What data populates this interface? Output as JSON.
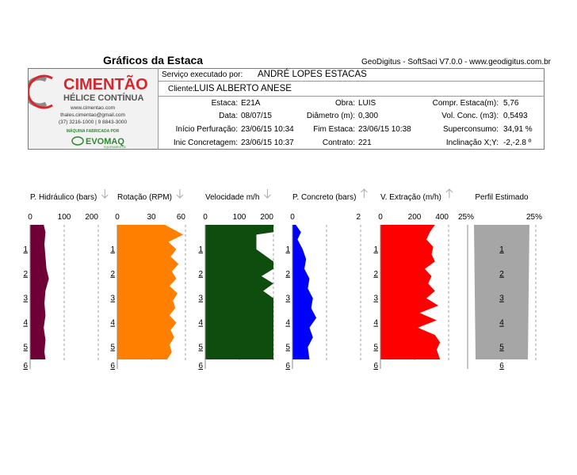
{
  "title": "Gráficos da Estaca",
  "software": "GeoDigitus - SoftSaci V7.0.0 - www.geodigitus.com.br",
  "logo": {
    "brand": "CIMENTÃO",
    "subtitle": "HÉLICE CONTÍNUA",
    "site": "www.cimentao.com",
    "email": "thales.cimentao@gmail.com",
    "phones": "(37) 3216-1000 | 9 8843-3000",
    "manufacturer_label": "MÁQUINA FABRICADA POR",
    "manufacturer": "EVOMAQ",
    "manufacturer_sub": "EQUIPAMENTOS"
  },
  "service": {
    "label": "Serviço executado por:",
    "value": "ANDRÉ LOPES ESTACAS"
  },
  "client": {
    "label": "Cliente:",
    "value": "LUIS ALBERTO ANESE"
  },
  "fields": {
    "estaca": {
      "label": "Estaca:",
      "value": "E21A"
    },
    "data": {
      "label": "Data:",
      "value": "08/07/15"
    },
    "inicio_perf": {
      "label": "Início Perfuração:",
      "value": "23/06/15 10:34"
    },
    "inic_conc": {
      "label": "Inic Concretagem:",
      "value": "23/06/15 10:37"
    },
    "obra": {
      "label": "Obra:",
      "value": "LUIS"
    },
    "diametro": {
      "label": "Diâmetro (m):",
      "value": "0,300"
    },
    "fim_estaca": {
      "label": "Fim Estaca:",
      "value": "23/06/15 10:38"
    },
    "contrato": {
      "label": "Contrato:",
      "value": "221"
    },
    "compr": {
      "label": "Compr. Estaca(m):",
      "value": "5,76"
    },
    "vol_conc": {
      "label": "Vol. Conc. (m3):",
      "value": "0,5493"
    },
    "superconsumo": {
      "label": "Superconsumo:",
      "value": "34,91 %"
    },
    "inclinacao": {
      "label": "Inclinação X;Y:",
      "value": "-2,-2.8 º"
    }
  },
  "chart_data": [
    {
      "type": "area",
      "title": "P. Hidráulico (bars)",
      "arrow": "down",
      "color": "#6e0035",
      "xlim": [
        0,
        200
      ],
      "xticks": [
        "0",
        "100",
        "200"
      ],
      "depth_ticks": [
        "1",
        "2",
        "3",
        "4",
        "5",
        "6"
      ],
      "depth": [
        0,
        0.3,
        0.8,
        1.3,
        1.8,
        2.2,
        2.7,
        3.2,
        3.7,
        4.2,
        4.7,
        5.2,
        5.5
      ],
      "values": [
        40,
        45,
        42,
        45,
        48,
        55,
        45,
        42,
        45,
        40,
        45,
        42,
        45
      ]
    },
    {
      "type": "area",
      "title": "Rotação (RPM)",
      "arrow": "down",
      "color": "#ff8000",
      "xlim": [
        0,
        60
      ],
      "xticks": [
        "0",
        "30",
        "60"
      ],
      "depth_ticks": [
        "1",
        "2",
        "3",
        "4",
        "5",
        "6"
      ],
      "depth": [
        0,
        0.2,
        0.4,
        0.7,
        1.0,
        1.3,
        1.6,
        1.9,
        2.2,
        2.5,
        2.8,
        3.1,
        3.4,
        3.7,
        4.0,
        4.3,
        4.6,
        4.9,
        5.2,
        5.5
      ],
      "values": [
        42,
        50,
        58,
        45,
        52,
        47,
        54,
        48,
        52,
        46,
        53,
        49,
        51,
        46,
        52,
        47,
        50,
        46,
        48,
        44
      ]
    },
    {
      "type": "area",
      "title": "Velocidade m/h",
      "arrow": "down",
      "color": "#0f4d0f",
      "xlim": [
        0,
        200
      ],
      "xticks": [
        "0",
        "100",
        "200"
      ],
      "depth_ticks": [
        "1",
        "2",
        "3",
        "4",
        "5",
        "6"
      ],
      "depth": [
        0,
        0.3,
        0.4,
        1.0,
        1.5,
        1.8,
        2.1,
        2.4,
        2.7,
        3.0,
        5.5
      ],
      "values": [
        200,
        200,
        150,
        150,
        200,
        200,
        165,
        200,
        170,
        200,
        200
      ]
    },
    {
      "type": "area",
      "title": "P. Concreto (bars)",
      "arrow": "up",
      "color": "#0000ff",
      "xlim": [
        0,
        2
      ],
      "xticks": [
        "0",
        "",
        "2"
      ],
      "depth_ticks": [
        "1",
        "2",
        "3",
        "4",
        "5",
        "6"
      ],
      "depth": [
        0,
        0.3,
        0.6,
        1.0,
        1.4,
        1.8,
        2.2,
        2.6,
        3.0,
        3.4,
        3.8,
        4.2,
        4.6,
        5.0,
        5.5
      ],
      "values": [
        0.1,
        0.25,
        0.15,
        0.3,
        0.4,
        0.35,
        0.5,
        0.45,
        0.6,
        0.55,
        0.7,
        0.5,
        0.6,
        0.45,
        0.5
      ]
    },
    {
      "type": "area",
      "title": "V. Extração (m/h)",
      "arrow": "up",
      "color": "#ff0000",
      "xlim": [
        0,
        400
      ],
      "xticks": [
        "0",
        "200",
        "400"
      ],
      "depth_ticks": [
        "1",
        "2",
        "3",
        "4",
        "5",
        "6"
      ],
      "depth": [
        0,
        0.3,
        0.6,
        0.9,
        1.2,
        1.5,
        1.8,
        2.1,
        2.4,
        2.7,
        3.0,
        3.3,
        3.6,
        3.9,
        4.2,
        4.5,
        4.8,
        5.1,
        5.5
      ],
      "values": [
        320,
        290,
        270,
        310,
        300,
        320,
        260,
        300,
        280,
        320,
        270,
        340,
        230,
        330,
        220,
        320,
        350,
        330,
        350
      ]
    },
    {
      "type": "profile",
      "title": "Perfil Estimado",
      "color": "#a6a6a6",
      "xticks": [
        "25%",
        "",
        "25%"
      ],
      "depth_ticks": [
        "1",
        "2",
        "3",
        "4",
        "5",
        "6"
      ],
      "depth": [
        0,
        5.5
      ],
      "values": [
        0,
        0
      ]
    }
  ]
}
